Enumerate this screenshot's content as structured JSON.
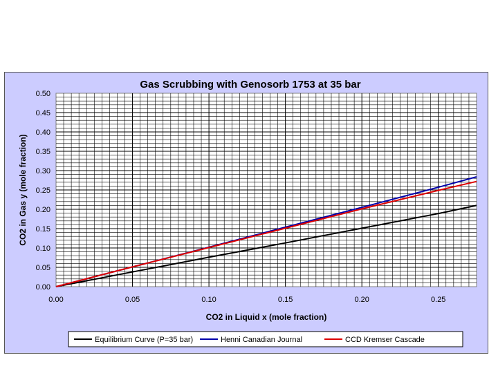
{
  "chart_data": {
    "type": "line",
    "title": "Gas Scrubbing with Genosorb 1753 at 35 bar",
    "xlabel": "CO2 in Liquid x (mole fraction)",
    "ylabel": "CO2 in Gas y (mole fraction)",
    "xlim": [
      0,
      0.275
    ],
    "ylim": [
      0,
      0.5
    ],
    "x_ticks": [
      "0.00",
      "0.05",
      "0.10",
      "0.15",
      "0.20",
      "0.25"
    ],
    "y_ticks": [
      "0.00",
      "0.05",
      "0.10",
      "0.15",
      "0.20",
      "0.25",
      "0.30",
      "0.35",
      "0.40",
      "0.45",
      "0.50"
    ],
    "grid": true,
    "legend_position": "bottom",
    "series": [
      {
        "name": "Equilibrium Curve (P=35 bar)",
        "color": "#000000",
        "x": [
          0,
          0.05,
          0.1,
          0.15,
          0.2,
          0.25,
          0.275
        ],
        "y": [
          0,
          0.038,
          0.076,
          0.113,
          0.151,
          0.189,
          0.21
        ]
      },
      {
        "name": "Henni Canadian Journal",
        "color": "#0000aa",
        "x": [
          0,
          0.05,
          0.1,
          0.15,
          0.2,
          0.25,
          0.275
        ],
        "y": [
          0,
          0.051,
          0.102,
          0.154,
          0.205,
          0.257,
          0.284
        ]
      },
      {
        "name": "CCD Kremser Cascade",
        "color": "#dd0000",
        "x": [
          0,
          0.05,
          0.1,
          0.15,
          0.2,
          0.25,
          0.275
        ],
        "y": [
          0,
          0.051,
          0.101,
          0.151,
          0.201,
          0.249,
          0.272
        ]
      }
    ]
  }
}
